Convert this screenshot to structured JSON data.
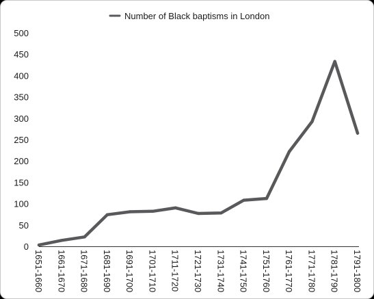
{
  "chart_data": {
    "type": "line",
    "categories": [
      "1651-1660",
      "1661-1670",
      "1671-1680",
      "1681-1690",
      "1691-1700",
      "1701-1710",
      "1711-1720",
      "1721-1730",
      "1731-1740",
      "1741-1750",
      "1751-1760",
      "1761-1770",
      "1771-1780",
      "1781-1790",
      "1791-1800"
    ],
    "series": [
      {
        "name": "Number of Black baptisms in London",
        "values": [
          3,
          14,
          22,
          74,
          81,
          82,
          90,
          77,
          78,
          108,
          112,
          222,
          292,
          433,
          265
        ],
        "color": "#59595b"
      }
    ],
    "yticks": [
      "0",
      "50",
      "100",
      "150",
      "200",
      "250",
      "300",
      "350",
      "400",
      "450",
      "500"
    ],
    "ylim": [
      0,
      500
    ],
    "legend_position": "top",
    "grid": false
  }
}
